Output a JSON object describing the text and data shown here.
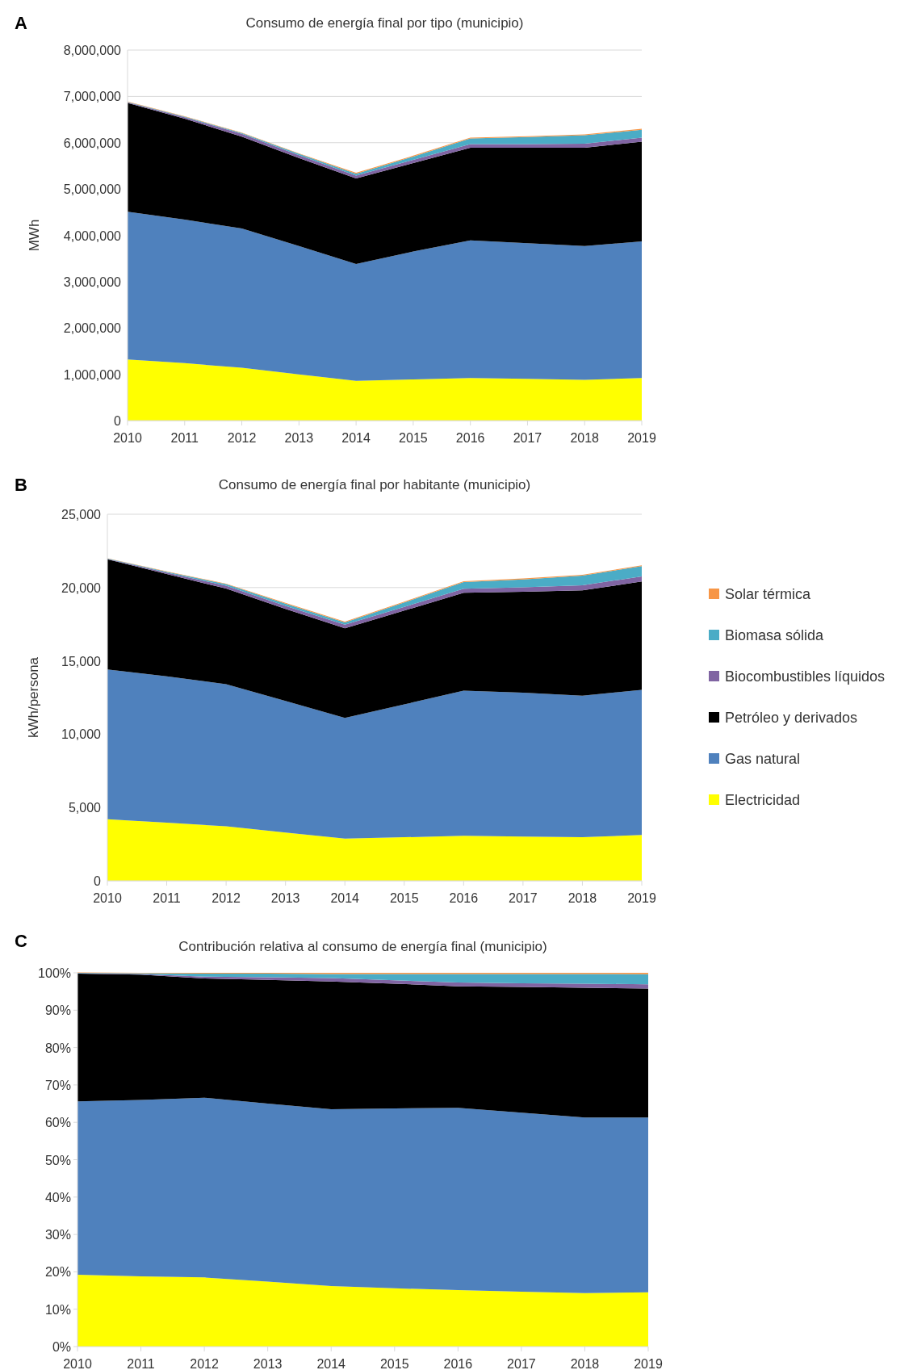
{
  "chart_data": [
    {
      "type": "area",
      "stacked": true,
      "title": "Consumo de energía final por tipo (municipio)",
      "ylabel": "MWh",
      "annotations": [
        "A"
      ],
      "categories": [
        "2010",
        "2011",
        "2012",
        "2013",
        "2014",
        "2015",
        "2016",
        "2017",
        "2018",
        "2019"
      ],
      "ylim": [
        0,
        8000000
      ],
      "yticks": [
        0,
        {
          "value": 1000000,
          "label": "1,000,000"
        },
        {
          "value": 2000000,
          "label": "2,000,000"
        },
        {
          "value": 3000000,
          "label": "3,000,000"
        },
        {
          "value": 4000000,
          "label": "4,000,000"
        },
        {
          "value": 5000000,
          "label": "5,000,000"
        },
        {
          "value": 6000000,
          "label": "6,000,000"
        },
        {
          "value": 7000000,
          "label": "7,000,000"
        },
        {
          "value": 8000000,
          "label": "8,000,000"
        }
      ],
      "grid": "y",
      "series": [
        {
          "color": "#ffff00",
          "values": [
            1320000,
            1240000,
            1140000,
            1000000,
            860000,
            890000,
            920000,
            900000,
            880000,
            920000
          ]
        },
        {
          "color": "#4f81bd",
          "values": [
            3190000,
            3100000,
            3010000,
            2770000,
            2520000,
            2760000,
            2970000,
            2930000,
            2890000,
            2950000
          ]
        },
        {
          "color": "#000000",
          "values": [
            2350000,
            2180000,
            1980000,
            1900000,
            1850000,
            1910000,
            2000000,
            2060000,
            2120000,
            2150000
          ]
        },
        {
          "color": "#8064a2",
          "values": [
            10000,
            30000,
            60000,
            60000,
            60000,
            70000,
            80000,
            80000,
            90000,
            90000
          ]
        },
        {
          "color": "#4bacc6",
          "values": [
            10000,
            10000,
            20000,
            30000,
            40000,
            70000,
            120000,
            150000,
            180000,
            170000
          ]
        },
        {
          "color": "#f79646",
          "values": [
            10000,
            10000,
            10000,
            10000,
            20000,
            20000,
            20000,
            20000,
            20000,
            20000
          ]
        }
      ]
    },
    {
      "type": "area",
      "stacked": true,
      "title": "Consumo de energía final por habitante (municipio)",
      "ylabel": "kWh/persona",
      "annotations": [
        "B"
      ],
      "legend": "right",
      "categories": [
        "2010",
        "2011",
        "2012",
        "2013",
        "2014",
        "2015",
        "2016",
        "2017",
        "2018",
        "2019"
      ],
      "ylim": [
        0,
        25000
      ],
      "yticks": [
        0,
        {
          "value": 5000,
          "label": "5,000"
        },
        {
          "value": 10000,
          "label": "10,000"
        },
        {
          "value": 15000,
          "label": "15,000"
        },
        {
          "value": 20000,
          "label": "20,000"
        },
        {
          "value": 25000,
          "label": "25,000"
        }
      ],
      "grid": "y",
      "series": [
        {
          "name": "Electricidad",
          "color": "#ffff00",
          "values": [
            4200,
            3960,
            3720,
            3290,
            2880,
            2970,
            3070,
            3020,
            2970,
            3120
          ]
        },
        {
          "name": "Gas natural",
          "color": "#4f81bd",
          "values": [
            10220,
            9980,
            9690,
            8980,
            8230,
            9060,
            9900,
            9810,
            9660,
            9900
          ]
        },
        {
          "name": "Petróleo y derivados",
          "color": "#000000",
          "values": [
            7510,
            6980,
            6520,
            6280,
            6110,
            6400,
            6670,
            6880,
            7180,
            7390
          ]
        },
        {
          "name": "Biocombustibles líquidos",
          "color": "#8064a2",
          "values": [
            30,
            100,
            200,
            200,
            250,
            250,
            280,
            300,
            350,
            350
          ]
        },
        {
          "name": "Biomasa sólida",
          "color": "#4bacc6",
          "values": [
            20,
            50,
            100,
            150,
            150,
            300,
            450,
            550,
            650,
            700
          ]
        },
        {
          "name": "Solar térmica",
          "color": "#f79646",
          "values": [
            20,
            30,
            40,
            50,
            60,
            60,
            60,
            60,
            60,
            60
          ]
        }
      ]
    },
    {
      "type": "area",
      "stacked": true,
      "title": "Contribución relativa al consumo de energía final (municipio)",
      "annotations": [
        "C"
      ],
      "categories": [
        "2010",
        "2011",
        "2012",
        "2013",
        "2014",
        "2015",
        "2016",
        "2017",
        "2018",
        "2019"
      ],
      "ylim": [
        0,
        100
      ],
      "yticks": [
        {
          "value": 0,
          "label": "0%"
        },
        {
          "value": 10,
          "label": "10%"
        },
        {
          "value": 20,
          "label": "20%"
        },
        {
          "value": 30,
          "label": "30%"
        },
        {
          "value": 40,
          "label": "40%"
        },
        {
          "value": 50,
          "label": "50%"
        },
        {
          "value": 60,
          "label": "60%"
        },
        {
          "value": 70,
          "label": "70%"
        },
        {
          "value": 80,
          "label": "80%"
        },
        {
          "value": 90,
          "label": "90%"
        },
        {
          "value": 100,
          "label": "100%"
        }
      ],
      "series": [
        {
          "color": "#ffff00",
          "values": [
            19.2,
            18.8,
            18.5,
            17.4,
            16.2,
            15.6,
            15.1,
            14.7,
            14.3,
            14.5
          ]
        },
        {
          "color": "#4f81bd",
          "values": [
            46.4,
            47.2,
            48.1,
            47.6,
            47.3,
            48.1,
            48.8,
            47.9,
            47.0,
            46.8
          ]
        },
        {
          "color": "#000000",
          "values": [
            34.2,
            33.5,
            31.9,
            33.1,
            34.2,
            33.4,
            32.5,
            33.6,
            34.7,
            34.5
          ]
        },
        {
          "color": "#8064a2",
          "values": [
            0.1,
            0.2,
            0.5,
            0.7,
            0.9,
            0.9,
            1.0,
            1.0,
            1.1,
            1.1
          ]
        },
        {
          "color": "#4bacc6",
          "values": [
            0.1,
            0.2,
            0.8,
            1.0,
            1.1,
            1.7,
            2.3,
            2.5,
            2.6,
            2.7
          ]
        },
        {
          "color": "#f79646",
          "values": [
            0.1,
            0.1,
            0.2,
            0.2,
            0.3,
            0.3,
            0.3,
            0.3,
            0.3,
            0.4
          ]
        }
      ]
    }
  ]
}
